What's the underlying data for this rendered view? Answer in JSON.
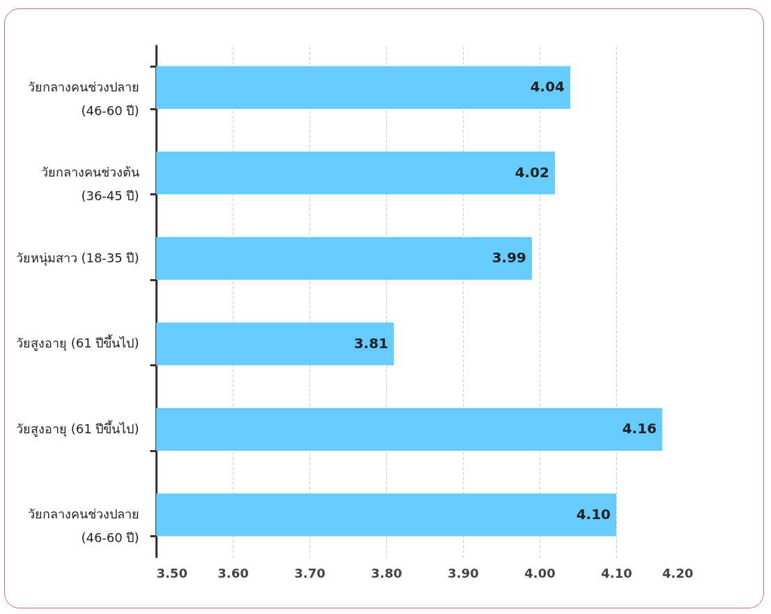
{
  "chart_data": {
    "type": "bar",
    "orientation": "horizontal",
    "categories": [
      "วัยกลางคนช่วงปลาย\n(46-60 ปี)",
      "วัยกลางคนช่วงต้น\n(36-45 ปี)",
      "วัยหนุ่มสาว (18-35 ปี)",
      "วัยสูงอายุ (61 ปีขึ้นไป)",
      "วัยสูงอายุ (61 ปีขึ้นไป)",
      "วัยกลางคนช่วงปลาย\n(46-60 ปี)"
    ],
    "values": [
      4.04,
      4.02,
      3.99,
      3.81,
      4.16,
      4.1
    ],
    "value_labels": [
      "4.04",
      "4.02",
      "3.99",
      "3.81",
      "4.16",
      "4.10"
    ],
    "color": "#66ccff",
    "xlim": [
      3.5,
      4.2
    ],
    "xticks": [
      {
        "value": 3.5,
        "label": "3.50"
      },
      {
        "value": 3.6,
        "label": "3.60"
      },
      {
        "value": 3.7,
        "label": "3.70"
      },
      {
        "value": 3.8,
        "label": "3.80"
      },
      {
        "value": 3.9,
        "label": "3.90"
      },
      {
        "value": 4.0,
        "label": "4.00"
      },
      {
        "value": 4.1,
        "label": "4.10"
      },
      {
        "value": 4.2,
        "label": "4.20"
      }
    ],
    "grid": "x"
  }
}
